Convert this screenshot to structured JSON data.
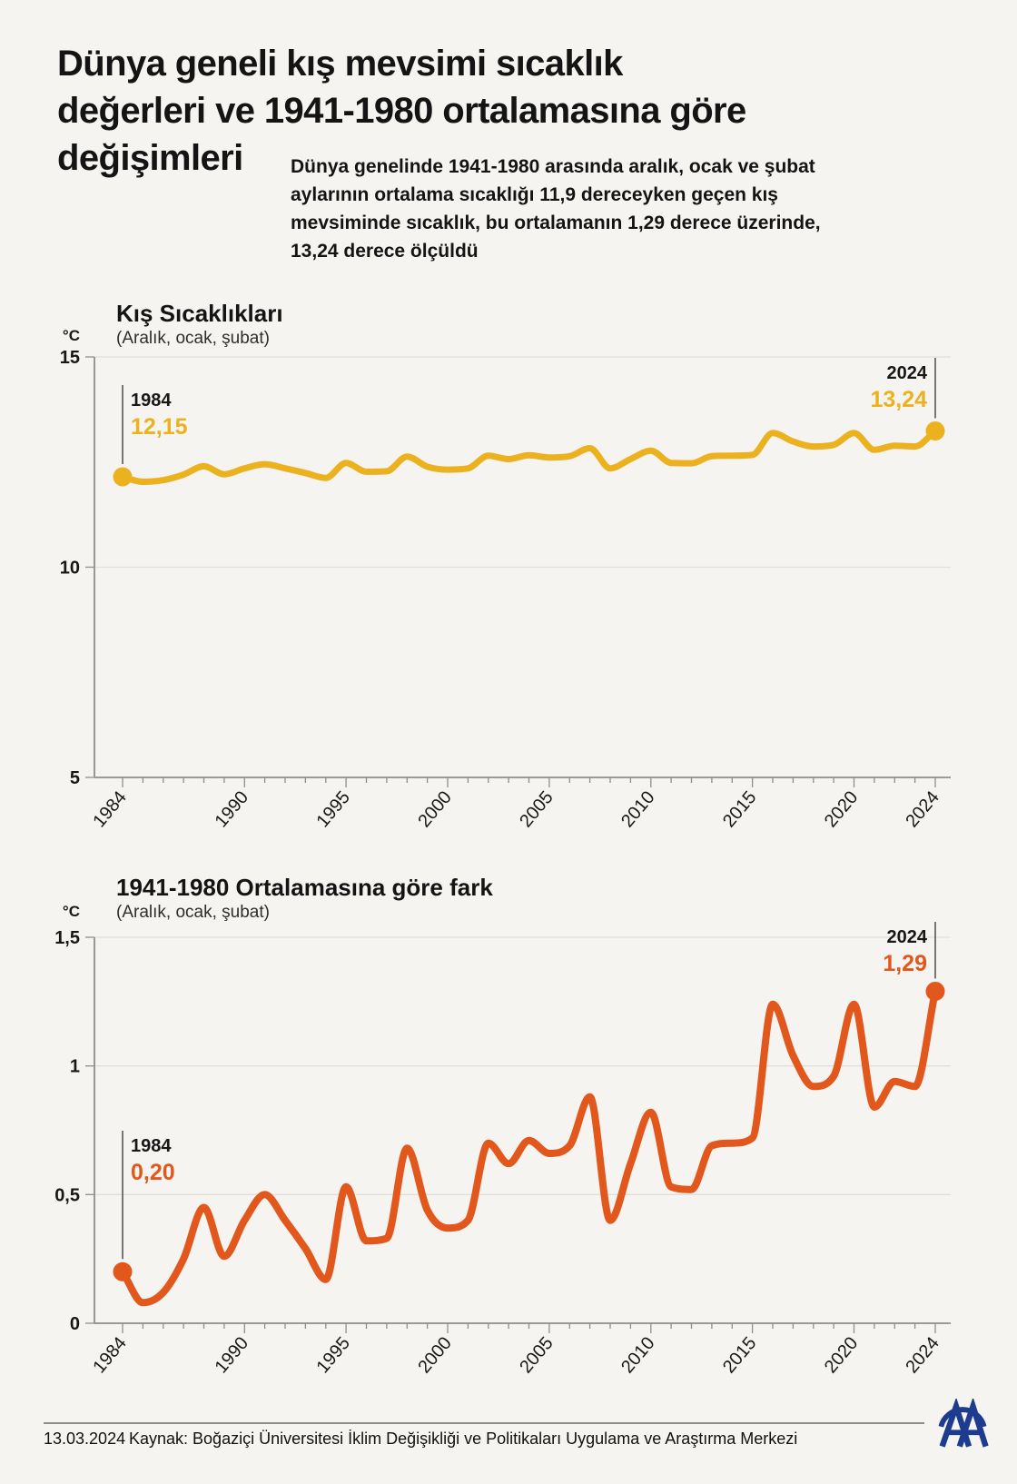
{
  "page": {
    "background": "#f5f4f1",
    "text_color": "#171717"
  },
  "header": {
    "title_lines": [
      "Dünya geneli kış mevsimi sıcaklık",
      "değerleri ve 1941-1980 ortalamasına göre",
      "değişimleri"
    ],
    "intro": "Dünya genelinde 1941-1980 arasında aralık, ocak ve şubat\naylarının ortalama sıcaklığı 11,9 dereceyken geçen kış\nmevsiminde sıcaklık, bu ortalamanın 1,29 derece üzerinde,\n13,24 derece ölçüldü"
  },
  "chart_data": [
    {
      "type": "line",
      "title": "Kış Sıcaklıkları",
      "subtitle": "(Aralık, ocak, şubat)",
      "unit": "°C",
      "color": "#ebb11e",
      "grid": "horizontal",
      "legend": "none",
      "ylim": [
        5,
        15
      ],
      "x": [
        1984,
        1985,
        1986,
        1987,
        1988,
        1989,
        1990,
        1991,
        1992,
        1993,
        1994,
        1995,
        1996,
        1997,
        1998,
        1999,
        2000,
        2001,
        2002,
        2003,
        2004,
        2005,
        2006,
        2007,
        2008,
        2009,
        2010,
        2011,
        2012,
        2013,
        2014,
        2015,
        2016,
        2017,
        2018,
        2019,
        2020,
        2021,
        2022,
        2023,
        2024
      ],
      "values": [
        12.15,
        12.03,
        12.07,
        12.2,
        12.4,
        12.21,
        12.35,
        12.45,
        12.35,
        12.24,
        12.12,
        12.48,
        12.27,
        12.28,
        12.63,
        12.39,
        12.32,
        12.35,
        12.65,
        12.57,
        12.66,
        12.61,
        12.64,
        12.83,
        12.35,
        12.57,
        12.77,
        12.48,
        12.47,
        12.64,
        12.65,
        12.67,
        13.19,
        12.99,
        12.87,
        12.91,
        13.19,
        12.79,
        12.89,
        12.87,
        13.24
      ],
      "yticks": [
        {
          "value": 15,
          "label": "15"
        },
        {
          "value": 10,
          "label": "10"
        },
        {
          "value": 5,
          "label": "5"
        }
      ],
      "xtick_labels": [
        {
          "year": 1984,
          "label": "1984"
        },
        {
          "year": 1990,
          "label": "1990"
        },
        {
          "year": 1995,
          "label": "1995"
        },
        {
          "year": 2000,
          "label": "2000"
        },
        {
          "year": 2005,
          "label": "2005"
        },
        {
          "year": 2010,
          "label": "2010"
        },
        {
          "year": 2015,
          "label": "2015"
        },
        {
          "year": 2020,
          "label": "2020"
        },
        {
          "year": 2024,
          "label": "2024"
        }
      ],
      "start_annotation": {
        "year": "1984",
        "value": "12,15"
      },
      "end_annotation": {
        "year": "2024",
        "value": "13,24"
      }
    },
    {
      "type": "line",
      "title": "1941-1980 Ortalamasına göre fark",
      "subtitle": "(Aralık, ocak, şubat)",
      "unit": "°C",
      "color": "#e2571b",
      "grid": "horizontal",
      "legend": "none",
      "ylim": [
        0,
        1.5
      ],
      "x": [
        1984,
        1985,
        1986,
        1987,
        1988,
        1989,
        1990,
        1991,
        1992,
        1993,
        1994,
        1995,
        1996,
        1997,
        1998,
        1999,
        2000,
        2001,
        2002,
        2003,
        2004,
        2005,
        2006,
        2007,
        2008,
        2009,
        2010,
        2011,
        2012,
        2013,
        2014,
        2015,
        2016,
        2017,
        2018,
        2019,
        2020,
        2021,
        2022,
        2023,
        2024
      ],
      "values": [
        0.2,
        0.08,
        0.12,
        0.25,
        0.45,
        0.26,
        0.4,
        0.5,
        0.4,
        0.29,
        0.17,
        0.53,
        0.32,
        0.33,
        0.68,
        0.44,
        0.37,
        0.4,
        0.7,
        0.62,
        0.71,
        0.66,
        0.69,
        0.88,
        0.4,
        0.62,
        0.82,
        0.53,
        0.52,
        0.69,
        0.7,
        0.72,
        1.24,
        1.04,
        0.92,
        0.96,
        1.24,
        0.84,
        0.94,
        0.92,
        1.29
      ],
      "yticks": [
        {
          "value": 1.5,
          "label": "1,5"
        },
        {
          "value": 1,
          "label": "1"
        },
        {
          "value": 0.5,
          "label": "0,5"
        },
        {
          "value": 0,
          "label": "0"
        }
      ],
      "xtick_labels": [
        {
          "year": 1984,
          "label": "1984"
        },
        {
          "year": 1990,
          "label": "1990"
        },
        {
          "year": 1995,
          "label": "1995"
        },
        {
          "year": 2000,
          "label": "2000"
        },
        {
          "year": 2005,
          "label": "2005"
        },
        {
          "year": 2010,
          "label": "2010"
        },
        {
          "year": 2015,
          "label": "2015"
        },
        {
          "year": 2020,
          "label": "2020"
        },
        {
          "year": 2024,
          "label": "2024"
        }
      ],
      "start_annotation": {
        "year": "1984",
        "value": "0,20"
      },
      "end_annotation": {
        "year": "2024",
        "value": "1,29"
      }
    }
  ],
  "footer": {
    "date": "13.03.2024",
    "source": "Kaynak: Boğaziçi Üniversitesi İklim Değişikliği ve Politikaları Uygulama ve Araştırma Merkezi",
    "logo": "AA",
    "logo_color": "#1e3c8f"
  }
}
